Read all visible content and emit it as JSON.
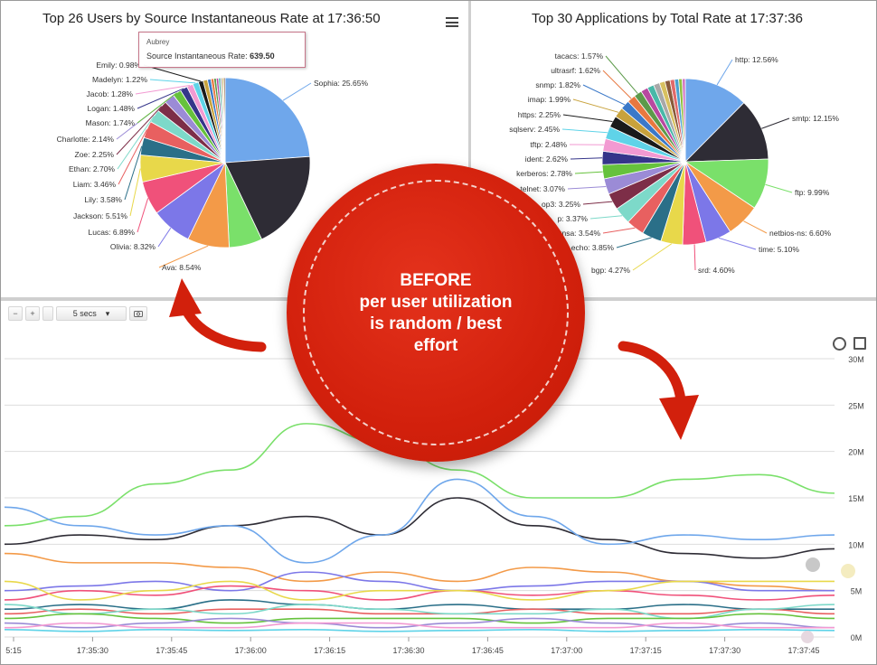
{
  "users_chart": {
    "title": "Top 26 Users by Source Instantaneous Rate at 17:36:50",
    "menu_icon": "hamburger-icon",
    "tooltip": {
      "name": "Aubrey",
      "label": "Source Instantaneous Rate:",
      "value": "639.50"
    },
    "slices": [
      {
        "label": "Sophia: 25.65%",
        "pct": 25.65,
        "color": "#6fa7eb"
      },
      {
        "label": "",
        "pct": 20.5,
        "color": "#2e2c35"
      },
      {
        "label": "",
        "pct": 6.8,
        "color": "#7ae06a"
      },
      {
        "label": "Ava: 8.54%",
        "pct": 8.54,
        "color": "#f39a48"
      },
      {
        "label": "Olivia: 8.32%",
        "pct": 8.32,
        "color": "#7c77e8"
      },
      {
        "label": "Lucas: 6.89%",
        "pct": 6.89,
        "color": "#f0517a"
      },
      {
        "label": "Jackson: 5.51%",
        "pct": 5.51,
        "color": "#e8d84a"
      },
      {
        "label": "Lily: 3.58%",
        "pct": 3.58,
        "color": "#2a6f88"
      },
      {
        "label": "Liam: 3.46%",
        "pct": 3.46,
        "color": "#e86060"
      },
      {
        "label": "Ethan: 2.70%",
        "pct": 2.7,
        "color": "#7dd9c9"
      },
      {
        "label": "Zoe: 2.25%",
        "pct": 2.25,
        "color": "#7d2e48"
      },
      {
        "label": "Charlotte: 2.14%",
        "pct": 2.14,
        "color": "#9b8bd6"
      },
      {
        "label": "Mason: 1.74%",
        "pct": 1.74,
        "color": "#66c23c"
      },
      {
        "label": "Logan: 1.48%",
        "pct": 1.48,
        "color": "#35358a"
      },
      {
        "label": "Jacob: 1.28%",
        "pct": 1.28,
        "color": "#f29ad2"
      },
      {
        "label": "Madelyn: 1.22%",
        "pct": 1.22,
        "color": "#5fd3e8"
      },
      {
        "label": "Emily: 0.98%",
        "pct": 0.98,
        "color": "#1a1a1a"
      },
      {
        "label": "",
        "pct": 0.9,
        "color": "#c8a23c"
      },
      {
        "label": "",
        "pct": 0.7,
        "color": "#3a78c8"
      },
      {
        "label": "",
        "pct": 0.6,
        "color": "#e87840"
      },
      {
        "label": "",
        "pct": 0.5,
        "color": "#5c9a4a"
      },
      {
        "label": "",
        "pct": 0.45,
        "color": "#b848a0"
      },
      {
        "label": "",
        "pct": 0.4,
        "color": "#48b8a8"
      },
      {
        "label": "",
        "pct": 0.35,
        "color": "#a8a8a8"
      },
      {
        "label": "",
        "pct": 0.3,
        "color": "#d8c060"
      },
      {
        "label": "",
        "pct": 0.3,
        "color": "#8a5a3a"
      }
    ]
  },
  "apps_chart": {
    "title": "Top 30 Applications by Total Rate at 17:37:36",
    "slices": [
      {
        "label": "http: 12.56%",
        "pct": 12.56,
        "color": "#6fa7eb"
      },
      {
        "label": "smtp: 12.15%",
        "pct": 12.15,
        "color": "#2e2c35"
      },
      {
        "label": "ftp: 9.99%",
        "pct": 9.99,
        "color": "#7ae06a"
      },
      {
        "label": "netbios-ns: 6.60%",
        "pct": 6.6,
        "color": "#f39a48"
      },
      {
        "label": "time: 5.10%",
        "pct": 5.1,
        "color": "#7c77e8"
      },
      {
        "label": "srd: 4.60%",
        "pct": 4.6,
        "color": "#f0517a"
      },
      {
        "label": "bgp: 4.27%",
        "pct": 4.27,
        "color": "#e8d84a"
      },
      {
        "label": "echo: 3.85%",
        "pct": 3.85,
        "color": "#2a6f88"
      },
      {
        "label": "xnsa: 3.54%",
        "pct": 3.54,
        "color": "#e86060"
      },
      {
        "label": "p: 3.37%",
        "pct": 3.37,
        "color": "#7dd9c9"
      },
      {
        "label": "op3: 3.25%",
        "pct": 3.25,
        "color": "#7d2e48"
      },
      {
        "label": "telnet: 3.07%",
        "pct": 3.07,
        "color": "#9b8bd6"
      },
      {
        "label": "kerberos: 2.78%",
        "pct": 2.78,
        "color": "#66c23c"
      },
      {
        "label": "ident: 2.62%",
        "pct": 2.62,
        "color": "#35358a"
      },
      {
        "label": "tftp: 2.48%",
        "pct": 2.48,
        "color": "#f29ad2"
      },
      {
        "label": "sqlserv: 2.45%",
        "pct": 2.45,
        "color": "#5fd3e8"
      },
      {
        "label": "https: 2.25%",
        "pct": 2.25,
        "color": "#1a1a1a"
      },
      {
        "label": "imap: 1.99%",
        "pct": 1.99,
        "color": "#c8a23c"
      },
      {
        "label": "snmp: 1.82%",
        "pct": 1.82,
        "color": "#3a78c8"
      },
      {
        "label": "ultrasrf: 1.62%",
        "pct": 1.62,
        "color": "#e87840"
      },
      {
        "label": "tacacs: 1.57%",
        "pct": 1.57,
        "color": "#5c9a4a"
      },
      {
        "label": "",
        "pct": 1.4,
        "color": "#b848a0"
      },
      {
        "label": "",
        "pct": 1.3,
        "color": "#48b8a8"
      },
      {
        "label": "",
        "pct": 1.2,
        "color": "#a8a8a8"
      },
      {
        "label": "",
        "pct": 1.1,
        "color": "#d8c060"
      },
      {
        "label": "",
        "pct": 1.0,
        "color": "#8a5a3a"
      },
      {
        "label": "",
        "pct": 0.9,
        "color": "#e06a6a"
      },
      {
        "label": "",
        "pct": 0.8,
        "color": "#4aa0d0"
      },
      {
        "label": "",
        "pct": 0.7,
        "color": "#90c040"
      },
      {
        "label": "",
        "pct": 0.6,
        "color": "#d070c0"
      }
    ]
  },
  "line_chart": {
    "toolbar": {
      "zoom_out": "−",
      "zoom_in": "+",
      "interval": "5 secs",
      "dropdown_arrow": "▾",
      "camera_icon": "camera-icon"
    },
    "y_ticks": [
      "30M",
      "25M",
      "20M",
      "15M",
      "10M",
      "5M",
      "0M"
    ],
    "x_ticks": [
      "5:15",
      "17:35:30",
      "17:35:45",
      "17:36:00",
      "17:36:15",
      "17:36:30",
      "17:36:45",
      "17:37:00",
      "17:37:15",
      "17:37:30",
      "17:37:45"
    ]
  },
  "chart_data": [
    {
      "type": "pie",
      "title": "Top 26 Users by Source Instantaneous Rate at 17:36:50",
      "labels": [
        "Sophia",
        "Ava",
        "Olivia",
        "Lucas",
        "Jackson",
        "Lily",
        "Liam",
        "Ethan",
        "Zoe",
        "Charlotte",
        "Mason",
        "Logan",
        "Jacob",
        "Madelyn",
        "Emily"
      ],
      "values": [
        25.65,
        8.54,
        8.32,
        6.89,
        5.51,
        3.58,
        3.46,
        2.7,
        2.25,
        2.14,
        1.74,
        1.48,
        1.28,
        1.22,
        0.98
      ]
    },
    {
      "type": "pie",
      "title": "Top 30 Applications by Total Rate at 17:37:36",
      "labels": [
        "http",
        "smtp",
        "ftp",
        "netbios-ns",
        "time",
        "srd",
        "bgp",
        "echo",
        "xnsa",
        "p",
        "op3",
        "telnet",
        "kerberos",
        "ident",
        "tftp",
        "sqlserv",
        "https",
        "imap",
        "snmp",
        "ultrasrf",
        "tacacs"
      ],
      "values": [
        12.56,
        12.15,
        9.99,
        6.6,
        5.1,
        4.6,
        4.27,
        3.85,
        3.54,
        3.37,
        3.25,
        3.07,
        2.78,
        2.62,
        2.48,
        2.45,
        2.25,
        1.99,
        1.82,
        1.62,
        1.57
      ]
    },
    {
      "type": "line",
      "x": [
        "17:35:15",
        "17:35:30",
        "17:35:45",
        "17:36:00",
        "17:36:15",
        "17:36:30",
        "17:36:45",
        "17:37:00",
        "17:37:15",
        "17:37:30",
        "17:37:45",
        "17:37:52"
      ],
      "ylim": [
        0,
        30
      ],
      "series": [
        {
          "color": "#7ae06a",
          "values": [
            12,
            13,
            16.5,
            18,
            23,
            21,
            18,
            15,
            15,
            17,
            17.5,
            15.5
          ]
        },
        {
          "color": "#2e2c35",
          "values": [
            10,
            11,
            10.5,
            12,
            13,
            11,
            15,
            12,
            10.5,
            9,
            8.5,
            9.5
          ]
        },
        {
          "color": "#6fa7eb",
          "values": [
            14,
            12,
            11,
            12,
            8,
            11,
            17,
            13,
            10,
            11,
            10.5,
            11
          ]
        },
        {
          "color": "#f39a48",
          "values": [
            9,
            8,
            8,
            7.5,
            6,
            7,
            6,
            7.5,
            7,
            6,
            5.5,
            5
          ]
        },
        {
          "color": "#7c77e8",
          "values": [
            5,
            5.5,
            6,
            5,
            7,
            6,
            5,
            5.5,
            6,
            6,
            5,
            5
          ]
        },
        {
          "color": "#f0517a",
          "values": [
            4,
            5,
            4.5,
            5.5,
            5,
            4,
            5,
            4.5,
            5,
            4.5,
            4,
            4.5
          ]
        },
        {
          "color": "#e8d84a",
          "values": [
            6,
            4,
            5,
            6,
            4,
            5,
            5,
            4,
            5,
            6,
            6,
            6
          ]
        },
        {
          "color": "#2a6f88",
          "values": [
            3,
            3.5,
            3,
            4,
            3.5,
            3,
            3.5,
            3,
            3,
            3.5,
            3,
            3
          ]
        },
        {
          "color": "#e86060",
          "values": [
            2.5,
            3,
            2.5,
            3,
            3,
            2.5,
            2.5,
            3,
            2.5,
            2.5,
            3,
            2.5
          ]
        },
        {
          "color": "#7dd9c9",
          "values": [
            3.5,
            2.5,
            3,
            2.5,
            3.5,
            3,
            2.5,
            2.5,
            3,
            2,
            3,
            3.5
          ]
        },
        {
          "color": "#66c23c",
          "values": [
            2,
            2.5,
            2,
            1.5,
            2,
            2,
            2,
            1.5,
            2,
            2,
            2.5,
            2
          ]
        },
        {
          "color": "#9b8bd6",
          "values": [
            1.5,
            1,
            1.5,
            2,
            1.5,
            1,
            1.5,
            2,
            1.5,
            1,
            1.5,
            1
          ]
        },
        {
          "color": "#f29ad2",
          "values": [
            1,
            1.5,
            1,
            1,
            1.5,
            1.5,
            1,
            1,
            1,
            1.5,
            1,
            1
          ]
        },
        {
          "color": "#5fd3e8",
          "values": [
            0.8,
            0.6,
            0.8,
            0.7,
            0.8,
            0.6,
            0.7,
            0.8,
            0.6,
            0.7,
            0.8,
            0.7
          ]
        }
      ]
    }
  ],
  "overlay": {
    "lines": [
      "BEFORE",
      "per user utilization",
      "is random / best",
      "effort"
    ],
    "bg_color": "#d2200c"
  }
}
